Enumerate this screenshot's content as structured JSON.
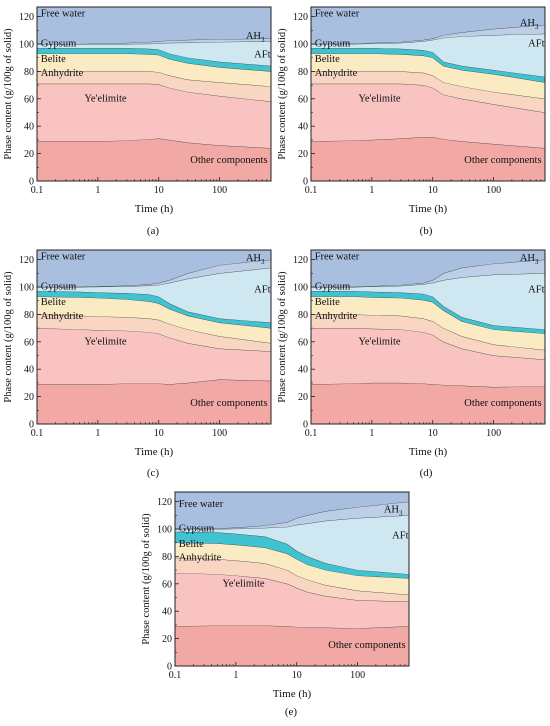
{
  "figure": {
    "panels": [
      "(a)",
      "(b)",
      "(c)",
      "(d)",
      "(e)"
    ]
  },
  "colors": {
    "other_components": "#f2a8a4",
    "yeelimite": "#f8c3c0",
    "anhydrite": "#f8d6c2",
    "belite": "#fbebc3",
    "gypsum": "#3fc3d1",
    "aft": "#cfe7f0",
    "ah3": "#bccfe6",
    "free_water": "#a9bfe0",
    "boundary": "#3a3a3a"
  },
  "chart_data": [
    {
      "type": "area",
      "panel_label": "(a)",
      "xlabel": "Time (h)",
      "ylabel": "Phase content (g/100g of solid)",
      "xscale": "log",
      "xlim": [
        0.1,
        700
      ],
      "ylim": [
        0,
        127
      ],
      "xticks": [
        0.1,
        1,
        10,
        100
      ],
      "xtick_labels": [
        "0.1",
        "1",
        "10",
        "100"
      ],
      "yticks": [
        0,
        20,
        40,
        60,
        80,
        100,
        120
      ],
      "x": [
        0.1,
        0.5,
        1,
        3,
        7,
        10,
        15,
        30,
        100,
        700
      ],
      "boundaries": [
        {
          "name": "Other components",
          "values": [
            29,
            29,
            29,
            29.5,
            30.5,
            31,
            30,
            28,
            26,
            24
          ]
        },
        {
          "name": "Ye'elimite",
          "values": [
            71,
            71,
            71,
            71,
            71,
            70.5,
            68,
            65,
            62,
            58
          ]
        },
        {
          "name": "Anhydrite",
          "values": [
            80,
            80,
            80,
            80,
            80,
            79.5,
            77,
            74,
            72,
            69
          ]
        },
        {
          "name": "Belite",
          "values": [
            93,
            93,
            93,
            93,
            92.5,
            92,
            89,
            86,
            83,
            80
          ]
        },
        {
          "name": "Gypsum",
          "values": [
            97,
            97,
            97,
            97,
            96.5,
            96,
            93,
            90,
            87,
            84
          ]
        },
        {
          "name": "AFt",
          "values": [
            100,
            100,
            100,
            100,
            100.2,
            100.5,
            100.8,
            101,
            101.5,
            102
          ]
        },
        {
          "name": "AH3",
          "values": [
            100,
            100,
            100.3,
            100.8,
            101.5,
            102,
            102.5,
            103,
            103.5,
            104
          ]
        },
        {
          "name": "Free water",
          "values": [
            127,
            127,
            127,
            127,
            127,
            127,
            127,
            127,
            127,
            127
          ]
        }
      ],
      "labels": {
        "free_water": "Free water",
        "ah3": "AH",
        "ah3_sub": "3",
        "aft": "AFt",
        "gypsum": "Gypsum",
        "belite": "Belite",
        "anhydrite": "Anhydrite",
        "yeelimite": "Ye'elimite",
        "other": "Other components"
      }
    },
    {
      "type": "area",
      "panel_label": "(b)",
      "xlabel": "Time (h)",
      "ylabel": "Phase content (g/100g of solid)",
      "xscale": "log",
      "xlim": [
        0.1,
        700
      ],
      "ylim": [
        0,
        127
      ],
      "xticks": [
        0.1,
        1,
        10,
        100
      ],
      "xtick_labels": [
        "0.1",
        "1",
        "10",
        "100"
      ],
      "yticks": [
        0,
        20,
        40,
        60,
        80,
        100,
        120
      ],
      "x": [
        0.1,
        0.5,
        1,
        3,
        7,
        10,
        15,
        30,
        100,
        700
      ],
      "boundaries": [
        {
          "name": "Other components",
          "values": [
            29,
            29.5,
            30,
            31,
            32,
            32,
            30.5,
            29,
            27,
            24
          ]
        },
        {
          "name": "Ye'elimite",
          "values": [
            71,
            71,
            71,
            71,
            70,
            68,
            63,
            60,
            56,
            50
          ]
        },
        {
          "name": "Anhydrite",
          "values": [
            80,
            80,
            80,
            80,
            79,
            77,
            72,
            69,
            65,
            60
          ]
        },
        {
          "name": "Belite",
          "values": [
            93,
            93,
            93,
            92.5,
            91.5,
            90,
            84,
            81,
            78,
            72
          ]
        },
        {
          "name": "Gypsum",
          "values": [
            97,
            97,
            97,
            96.5,
            95.5,
            94,
            87,
            84,
            81,
            76
          ]
        },
        {
          "name": "AFt",
          "values": [
            100,
            100,
            100.3,
            100.8,
            102,
            103,
            104.5,
            105.5,
            106.5,
            107.5
          ]
        },
        {
          "name": "AH3",
          "values": [
            100,
            100.3,
            100.8,
            101.5,
            103,
            104,
            106.5,
            108.5,
            111,
            114
          ]
        },
        {
          "name": "Free water",
          "values": [
            127,
            127,
            127,
            127,
            127,
            127,
            127,
            127,
            127,
            127
          ]
        }
      ],
      "labels": {
        "free_water": "Free water",
        "ah3": "AH",
        "ah3_sub": "3",
        "aft": "AFt",
        "gypsum": "Gypsum",
        "belite": "Belite",
        "anhydrite": "Anhydrite",
        "yeelimite": "Ye'elimite",
        "other": "Other components"
      }
    },
    {
      "type": "area",
      "panel_label": "(c)",
      "xlabel": "Time (h)",
      "ylabel": "Phase content (g/100g of solid)",
      "xscale": "log",
      "xlim": [
        0.1,
        700
      ],
      "ylim": [
        0,
        127
      ],
      "xticks": [
        0.1,
        1,
        10,
        100
      ],
      "xtick_labels": [
        "0.1",
        "1",
        "10",
        "100"
      ],
      "yticks": [
        0,
        20,
        40,
        60,
        80,
        100,
        120
      ],
      "x": [
        0.1,
        0.5,
        1,
        3,
        7,
        10,
        15,
        30,
        100,
        700
      ],
      "boundaries": [
        {
          "name": "Other components",
          "values": [
            29,
            29,
            29,
            29.5,
            29.5,
            29.5,
            29,
            30,
            32.5,
            31.5
          ]
        },
        {
          "name": "Ye'elimite",
          "values": [
            70,
            69,
            68.5,
            68,
            67,
            66,
            63,
            59,
            55,
            53
          ]
        },
        {
          "name": "Anhydrite",
          "values": [
            80,
            79,
            78.5,
            78,
            77,
            76,
            73,
            69,
            64,
            59
          ]
        },
        {
          "name": "Belite",
          "values": [
            93,
            92.5,
            92,
            91,
            89.5,
            88,
            84,
            79,
            74,
            70
          ]
        },
        {
          "name": "Gypsum",
          "values": [
            97,
            96.5,
            96,
            95.5,
            94.5,
            93,
            88,
            82,
            77,
            74
          ]
        },
        {
          "name": "AFt",
          "values": [
            100,
            100,
            100.2,
            100.5,
            101,
            101.5,
            103,
            106,
            110,
            114
          ]
        },
        {
          "name": "AH3",
          "values": [
            100,
            100.2,
            100.5,
            101,
            102,
            103,
            105,
            110,
            116,
            120
          ]
        },
        {
          "name": "Free water",
          "values": [
            127,
            127,
            127,
            127,
            127,
            127,
            127,
            127,
            127,
            127
          ]
        }
      ],
      "labels": {
        "free_water": "Free water",
        "ah3": "AH",
        "ah3_sub": "3",
        "aft": "AFt",
        "gypsum": "Gypsum",
        "belite": "Belite",
        "anhydrite": "Anhydrite",
        "yeelimite": "Ye'elimite",
        "other": "Other components"
      }
    },
    {
      "type": "area",
      "panel_label": "(d)",
      "xlabel": "Time (h)",
      "ylabel": "Phase content (g/100g of solid)",
      "xscale": "log",
      "xlim": [
        0.1,
        700
      ],
      "ylim": [
        0,
        127
      ],
      "xticks": [
        0.1,
        1,
        10,
        100
      ],
      "xtick_labels": [
        "0.1",
        "1",
        "10",
        "100"
      ],
      "yticks": [
        0,
        20,
        40,
        60,
        80,
        100,
        120
      ],
      "x": [
        0.1,
        0.5,
        1,
        3,
        7,
        10,
        15,
        30,
        100,
        700
      ],
      "boundaries": [
        {
          "name": "Other components",
          "values": [
            29,
            29.5,
            30,
            30,
            29.5,
            29,
            28.5,
            28,
            27,
            27.5
          ]
        },
        {
          "name": "Ye'elimite",
          "values": [
            70,
            70,
            69.5,
            69,
            67,
            65,
            60,
            55,
            50,
            47
          ]
        },
        {
          "name": "Anhydrite",
          "values": [
            80,
            80,
            79.5,
            79,
            77,
            75,
            70,
            64,
            58,
            54
          ]
        },
        {
          "name": "Belite",
          "values": [
            93,
            93,
            92.5,
            92,
            90.5,
            89,
            83,
            75,
            69,
            66
          ]
        },
        {
          "name": "Gypsum",
          "values": [
            97,
            97,
            96.5,
            96,
            95,
            93,
            86,
            78,
            72,
            69
          ]
        },
        {
          "name": "AFt",
          "values": [
            100,
            100,
            100.3,
            100.8,
            102,
            103,
            105,
            107,
            109,
            110
          ]
        },
        {
          "name": "AH3",
          "values": [
            100,
            100.2,
            100.6,
            101.5,
            103,
            105,
            110,
            114,
            117,
            120
          ]
        },
        {
          "name": "Free water",
          "values": [
            127,
            127,
            127,
            127,
            127,
            127,
            127,
            127,
            127,
            127
          ]
        }
      ],
      "labels": {
        "free_water": "Free water",
        "ah3": "AH",
        "ah3_sub": "3",
        "aft": "AFt",
        "gypsum": "Gypsum",
        "belite": "Belite",
        "anhydrite": "Anhydrite",
        "yeelimite": "Ye'elimite",
        "other": "Other components"
      }
    },
    {
      "type": "area",
      "panel_label": "(e)",
      "xlabel": "Time (h)",
      "ylabel": "Phase content (g/100g of solid)",
      "xscale": "log",
      "xlim": [
        0.1,
        700
      ],
      "ylim": [
        0,
        127
      ],
      "xticks": [
        0.1,
        1,
        10,
        100
      ],
      "xtick_labels": [
        "0.1",
        "1",
        "10",
        "100"
      ],
      "yticks": [
        0,
        20,
        40,
        60,
        80,
        100,
        120
      ],
      "x": [
        0.1,
        0.5,
        1,
        3,
        7,
        10,
        15,
        30,
        100,
        700
      ],
      "boundaries": [
        {
          "name": "Other components",
          "values": [
            29,
            29.5,
            29.5,
            29.5,
            29,
            28.5,
            28.5,
            28,
            27.5,
            29
          ]
        },
        {
          "name": "Ye'elimite",
          "values": [
            68,
            67,
            66,
            64,
            60,
            57,
            54,
            51,
            48,
            47
          ]
        },
        {
          "name": "Anhydrite",
          "values": [
            79,
            78,
            77,
            75,
            70,
            66,
            63,
            59,
            55,
            52
          ]
        },
        {
          "name": "Belite",
          "values": [
            90,
            89.5,
            88.5,
            86.5,
            82,
            78,
            74,
            70,
            66,
            64
          ]
        },
        {
          "name": "Gypsum",
          "values": [
            98,
            97.5,
            96.5,
            94.5,
            89,
            84,
            80,
            75,
            70,
            67
          ]
        },
        {
          "name": "AFt",
          "values": [
            100,
            100,
            100.2,
            100.8,
            101.5,
            103,
            104,
            106,
            108,
            110
          ]
        },
        {
          "name": "AH3",
          "values": [
            100,
            100.5,
            101,
            102.5,
            105,
            108,
            110,
            113,
            116,
            120
          ]
        },
        {
          "name": "Free water",
          "values": [
            127,
            127,
            127,
            127,
            127,
            127,
            127,
            127,
            127,
            127
          ]
        }
      ],
      "labels": {
        "free_water": "Free water",
        "ah3": "AH",
        "ah3_sub": "3",
        "aft": "AFt",
        "gypsum": "Gypsum",
        "belite": "Belite",
        "anhydrite": "Anhydrite",
        "yeelimite": "Ye'elimite",
        "other": "Other components"
      }
    }
  ]
}
